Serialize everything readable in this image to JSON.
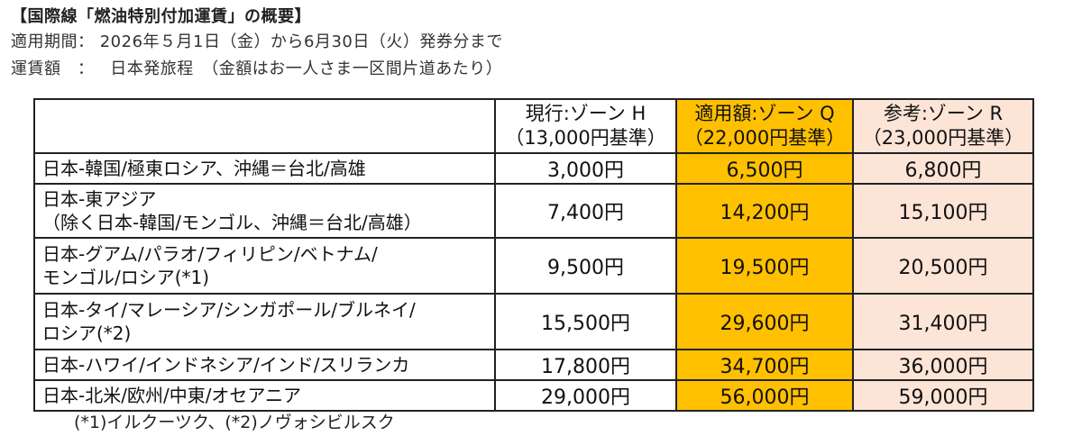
{
  "header": {
    "title": "【国際線「燃油特別付加運賃」の概要】",
    "period_label": "適用期間：",
    "period_value": "2026年５月1日（金）から6月30日（火）発券分まで",
    "fare_label": "運賃額　：",
    "fare_value": "日本発旅程　（金額はお一人さま一区間片道あたり）"
  },
  "table": {
    "columns": [
      {
        "line1": "現行:ゾーン H",
        "line2": "（13,000円基準）"
      },
      {
        "line1": "適用額:ゾーン Q",
        "line2": "（22,000円基準）"
      },
      {
        "line1": "参考:ゾーン R",
        "line2": "（23,000円基準）"
      }
    ],
    "rows": [
      {
        "route": [
          "日本-韓国/極東ロシア、沖縄＝台北/高雄"
        ],
        "h": "3,000円",
        "q": "6,500円",
        "r": "6,800円"
      },
      {
        "route": [
          "日本-東アジア",
          "（除く日本-韓国/モンゴル、沖縄＝台北/高雄）"
        ],
        "h": "7,400円",
        "q": "14,200円",
        "r": "15,100円"
      },
      {
        "route": [
          "日本-グアム/パラオ/フィリピン/ベトナム/",
          "モンゴル/ロシア(*1)"
        ],
        "h": "9,500円",
        "q": "19,500円",
        "r": "20,500円"
      },
      {
        "route": [
          "日本-タイ/マレーシア/シンガポール/ブルネイ/",
          "ロシア(*2)"
        ],
        "h": "15,500円",
        "q": "29,600円",
        "r": "31,400円"
      },
      {
        "route": [
          "日本-ハワイ/インドネシア/インド/スリランカ"
        ],
        "h": "17,800円",
        "q": "34,700円",
        "r": "36,000円"
      },
      {
        "route": [
          "日本-北米/欧州/中東/オセアニア"
        ],
        "h": "29,000円",
        "q": "56,000円",
        "r": "59,000円"
      }
    ]
  },
  "footnote": "(*1)イルクーツク、(*2)ノヴォシビルスク",
  "colors": {
    "zone_q_background": "#ffc000",
    "zone_r_background": "#fce4d6",
    "border": "#222222"
  }
}
